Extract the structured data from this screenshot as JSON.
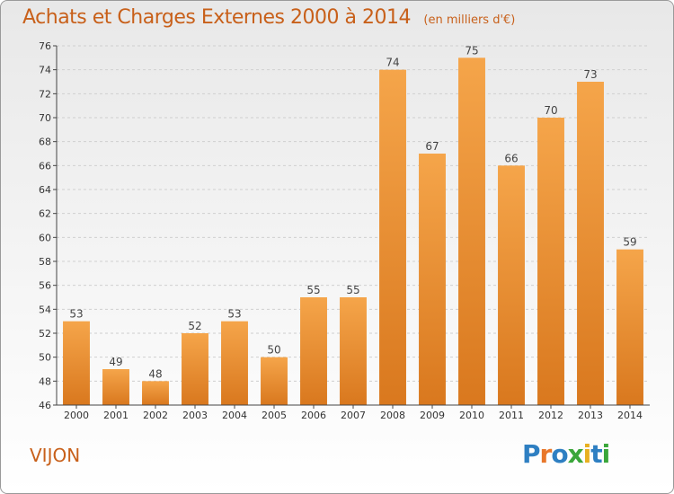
{
  "header": {
    "title": "Achats et Charges Externes 2000 à 2014",
    "unit": "(en milliers d'€)"
  },
  "footer": {
    "commune": "VIJON",
    "logo_letters": [
      "P",
      "r",
      "o",
      "x",
      "i",
      "t",
      "i"
    ]
  },
  "colors": {
    "bar_light": "#f5a54a",
    "bar_dark": "#d9781e",
    "title": "#c8601a",
    "logo": [
      "#2e7fc2",
      "#e8772a",
      "#2e7fc2",
      "#3aa63a",
      "#e8b020",
      "#2e7fc2",
      "#3aa63a"
    ]
  },
  "chart_data": {
    "type": "bar",
    "title": "Achats et Charges Externes 2000 à 2014",
    "subtitle": "(en milliers d'€)",
    "categories": [
      "2000",
      "2001",
      "2002",
      "2003",
      "2004",
      "2005",
      "2006",
      "2007",
      "2008",
      "2009",
      "2010",
      "2011",
      "2012",
      "2013",
      "2014"
    ],
    "values": [
      53,
      49,
      48,
      52,
      53,
      50,
      55,
      55,
      74,
      67,
      75,
      66,
      70,
      73,
      59
    ],
    "ylim": [
      46,
      76
    ],
    "yticks": [
      46,
      48,
      50,
      52,
      54,
      56,
      58,
      60,
      62,
      64,
      66,
      68,
      70,
      72,
      74,
      76
    ],
    "grid": true,
    "legend": "none"
  }
}
